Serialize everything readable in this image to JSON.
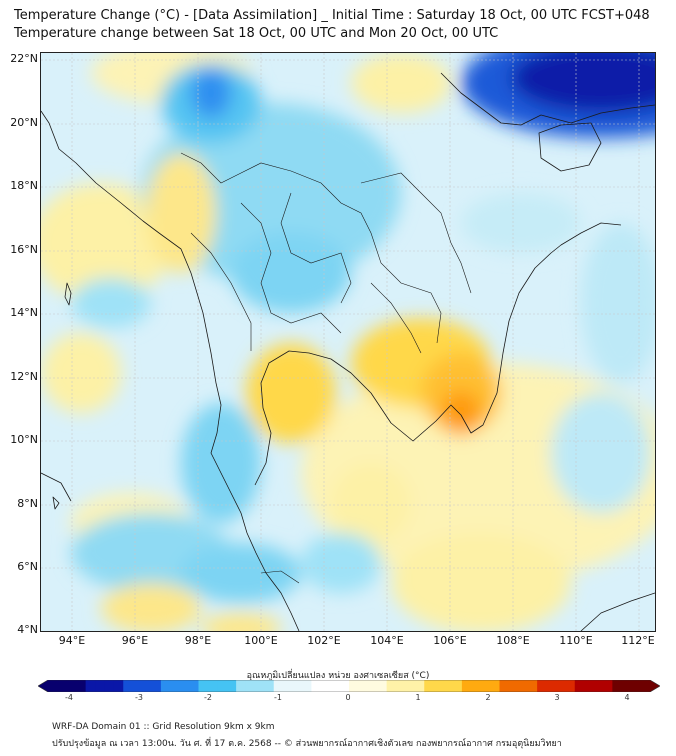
{
  "title": {
    "line1": "Temperature Change (°C) - [Data Assimilation] _ Initial Time : Saturday 18 Oct, 00 UTC FCST+048",
    "line2": "Temperature change between Sat 18 Oct, 00 UTC and Mon 20 Oct, 00 UTC"
  },
  "map": {
    "lat_labels": [
      "22°N",
      "20°N",
      "18°N",
      "16°N",
      "14°N",
      "12°N",
      "10°N",
      "8°N",
      "6°N",
      "4°N"
    ],
    "lon_labels": [
      "94°E",
      "96°E",
      "98°E",
      "100°E",
      "102°E",
      "104°E",
      "106°E",
      "108°E",
      "110°E",
      "112°E"
    ],
    "lat_range": [
      4,
      22.2
    ],
    "lon_range": [
      93,
      112.5
    ]
  },
  "colorbar": {
    "title": "อุณหภูมิเปลี่ยนแปลง หน่วย องศาเซลเซียส (°C)",
    "ticks": [
      "-4",
      "-3",
      "-2",
      "-1",
      "0",
      "1",
      "2",
      "3",
      "4"
    ],
    "range": [
      -4,
      4
    ],
    "colors": [
      "#08006e",
      "#0a17a8",
      "#1450d8",
      "#2a8ef0",
      "#45c3f3",
      "#9fe2f7",
      "#e9f7fb",
      "#ffffff",
      "#fffbe0",
      "#fff2a8",
      "#ffd84a",
      "#ffaa10",
      "#f06a00",
      "#dc2a00",
      "#b00000",
      "#6e0000"
    ]
  },
  "footer": {
    "line1": "WRF-DA Domain 01 :: Grid Resolution 9km x 9km",
    "line2": "ปรับปรุงข้อมูล ณ เวลา 13:00น. วัน ศ. ที่ 17 ต.ค. 2568 -- © ส่วนพยากรณ์อากาศเชิงตัวเลข กองพยากรณ์อากาศ กรมอุตุนิยมวิทยา"
  }
}
